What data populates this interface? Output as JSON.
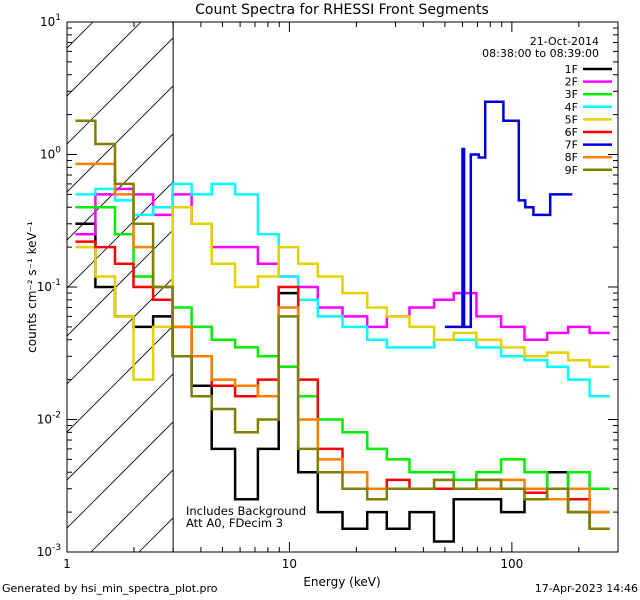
{
  "chart_data": {
    "type": "line",
    "title": "Count Spectra for RHESSI Front Segments",
    "xlabel": "Energy (keV)",
    "ylabel": "counts cm⁻² s⁻¹ keV⁻¹",
    "xscale": "log",
    "yscale": "log",
    "xlim": [
      1,
      300
    ],
    "ylim": [
      0.001,
      10
    ],
    "x_ticks": [
      {
        "value": 1,
        "label": "1"
      },
      {
        "value": 10,
        "label": "10"
      },
      {
        "value": 100,
        "label": "100"
      }
    ],
    "y_ticks": [
      {
        "value": 0.001,
        "base": "10",
        "exp": "-3"
      },
      {
        "value": 0.01,
        "base": "10",
        "exp": "-2"
      },
      {
        "value": 0.1,
        "base": "10",
        "exp": "-1"
      },
      {
        "value": 1,
        "base": "10",
        "exp": "0"
      },
      {
        "value": 10,
        "base": "10",
        "exp": "1"
      }
    ],
    "date": "21-Oct-2014",
    "time_range": "08:38:00 to 08:39:00",
    "legend_position": "top-right",
    "hatched_region": {
      "from": 1,
      "to": 3
    },
    "annotations": [
      "Includes Background",
      "Att A0, FDecim 3"
    ],
    "series": [
      {
        "name": "1F",
        "color": "#000000",
        "x": [
          1.2,
          1.5,
          1.8,
          2.2,
          2.7,
          3.3,
          4.0,
          5.0,
          6.5,
          8.0,
          10,
          12,
          15,
          20,
          25,
          30,
          40,
          50,
          60,
          80,
          100,
          130,
          160,
          200,
          250
        ],
        "y": [
          0.3,
          0.1,
          0.06,
          0.05,
          0.06,
          0.03,
          0.018,
          0.006,
          0.0025,
          0.006,
          0.09,
          0.004,
          0.002,
          0.0015,
          0.002,
          0.0015,
          0.002,
          0.0012,
          0.0025,
          0.0025,
          0.002,
          0.0025,
          0.004,
          0.002,
          0.0015
        ]
      },
      {
        "name": "2F",
        "color": "#ff00ff",
        "x": [
          1.2,
          1.5,
          1.8,
          2.2,
          2.7,
          3.3,
          4.0,
          5.0,
          6.5,
          8.0,
          10,
          12,
          15,
          20,
          25,
          30,
          40,
          50,
          60,
          80,
          100,
          130,
          160,
          200,
          250
        ],
        "y": [
          0.25,
          0.5,
          0.55,
          0.5,
          0.35,
          0.5,
          0.3,
          0.2,
          0.2,
          0.15,
          0.12,
          0.1,
          0.07,
          0.06,
          0.05,
          0.06,
          0.07,
          0.08,
          0.09,
          0.06,
          0.05,
          0.04,
          0.045,
          0.05,
          0.045
        ]
      },
      {
        "name": "3F",
        "color": "#00ee00",
        "x": [
          1.2,
          1.5,
          1.8,
          2.2,
          2.7,
          3.3,
          4.0,
          5.0,
          6.5,
          8.0,
          10,
          12,
          15,
          20,
          25,
          30,
          40,
          50,
          60,
          80,
          100,
          130,
          160,
          200,
          250
        ],
        "y": [
          0.4,
          0.4,
          0.25,
          0.12,
          0.1,
          0.07,
          0.05,
          0.04,
          0.035,
          0.03,
          0.025,
          0.015,
          0.01,
          0.008,
          0.006,
          0.005,
          0.004,
          0.004,
          0.0035,
          0.004,
          0.005,
          0.004,
          0.003,
          0.004,
          0.003
        ]
      },
      {
        "name": "4F",
        "color": "#00ffff",
        "x": [
          1.2,
          1.5,
          1.8,
          2.2,
          2.7,
          3.3,
          4.0,
          5.0,
          6.5,
          8.0,
          10,
          12,
          15,
          20,
          25,
          30,
          40,
          50,
          60,
          80,
          100,
          130,
          160,
          200,
          250
        ],
        "y": [
          0.5,
          0.55,
          0.45,
          0.35,
          0.4,
          0.6,
          0.5,
          0.6,
          0.5,
          0.25,
          0.12,
          0.08,
          0.06,
          0.05,
          0.04,
          0.035,
          0.035,
          0.04,
          0.04,
          0.035,
          0.03,
          0.028,
          0.025,
          0.02,
          0.015
        ]
      },
      {
        "name": "5F",
        "color": "#e6d200",
        "x": [
          1.2,
          1.5,
          1.8,
          2.2,
          2.7,
          3.3,
          4.0,
          5.0,
          6.5,
          8.0,
          10,
          12,
          15,
          20,
          25,
          30,
          40,
          50,
          60,
          80,
          100,
          130,
          160,
          200,
          250
        ],
        "y": [
          0.2,
          0.12,
          0.06,
          0.02,
          0.05,
          0.4,
          0.3,
          0.15,
          0.1,
          0.12,
          0.2,
          0.15,
          0.12,
          0.09,
          0.07,
          0.06,
          0.05,
          0.04,
          0.045,
          0.04,
          0.035,
          0.03,
          0.032,
          0.028,
          0.025
        ]
      },
      {
        "name": "6F",
        "color": "#ff0000",
        "x": [
          1.2,
          1.5,
          1.8,
          2.2,
          2.7,
          3.3,
          4.0,
          5.0,
          6.5,
          8.0,
          10,
          12,
          15,
          20,
          25,
          30,
          40,
          50,
          60,
          80,
          100,
          130,
          160,
          200,
          250
        ],
        "y": [
          0.22,
          0.2,
          0.15,
          0.1,
          0.08,
          0.05,
          0.03,
          0.018,
          0.015,
          0.02,
          0.1,
          0.02,
          0.006,
          0.004,
          0.003,
          0.0035,
          0.003,
          0.003,
          0.003,
          0.0035,
          0.003,
          0.0028,
          0.0025,
          0.0025,
          0.002
        ]
      },
      {
        "name": "7F",
        "color": "#0000dd",
        "x": [
          55,
          60,
          60,
          61,
          61,
          70,
          72,
          80,
          105,
          110,
          120,
          130,
          170
        ],
        "y": [
          0.05,
          0.05,
          1.1,
          1.1,
          0.05,
          1.0,
          0.95,
          2.5,
          1.8,
          0.45,
          0.4,
          0.35,
          0.5
        ]
      },
      {
        "name": "8F",
        "color": "#ff8000",
        "x": [
          1.2,
          1.5,
          1.8,
          2.2,
          2.7,
          3.3,
          4.0,
          5.0,
          6.5,
          8.0,
          10,
          12,
          15,
          20,
          25,
          30,
          40,
          50,
          60,
          80,
          100,
          130,
          160,
          200,
          250
        ],
        "y": [
          0.85,
          0.85,
          0.5,
          0.2,
          0.1,
          0.05,
          0.03,
          0.02,
          0.018,
          0.015,
          0.07,
          0.01,
          0.005,
          0.004,
          0.003,
          0.003,
          0.003,
          0.0035,
          0.003,
          0.003,
          0.0035,
          0.003,
          0.0025,
          0.003,
          0.002
        ]
      },
      {
        "name": "9F",
        "color": "#808000",
        "x": [
          1.2,
          1.5,
          1.8,
          2.2,
          2.7,
          3.3,
          4.0,
          5.0,
          6.5,
          8.0,
          10,
          12,
          15,
          20,
          25,
          30,
          40,
          50,
          60,
          80,
          100,
          130,
          160,
          200,
          250
        ],
        "y": [
          1.8,
          1.2,
          0.6,
          0.3,
          0.1,
          0.03,
          0.015,
          0.012,
          0.008,
          0.01,
          0.06,
          0.006,
          0.004,
          0.003,
          0.0025,
          0.003,
          0.003,
          0.0035,
          0.003,
          0.0035,
          0.003,
          0.0025,
          0.003,
          0.002,
          0.0015
        ]
      }
    ]
  },
  "footer": {
    "generated_by": "Generated by hsi_min_spectra_plot.pro",
    "timestamp": "17-Apr-2023 14:46"
  }
}
